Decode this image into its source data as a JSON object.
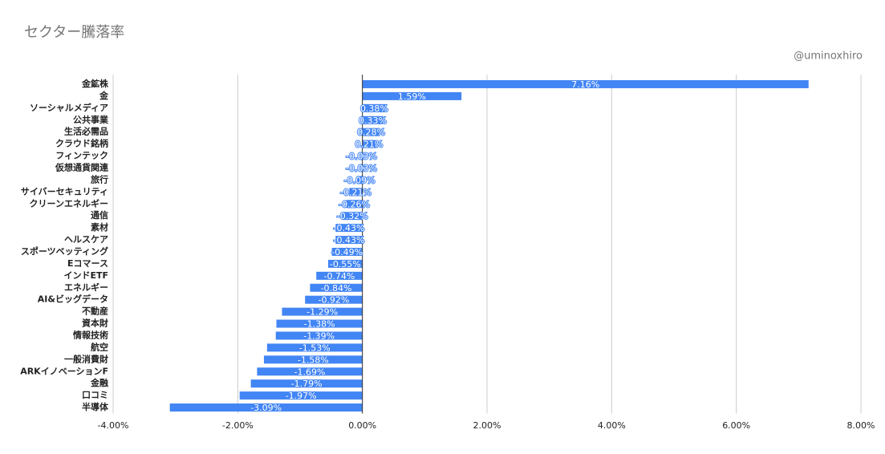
{
  "chart_data": {
    "type": "bar",
    "orientation": "horizontal",
    "title": "セクター騰落率",
    "watermark": "@uminoxhiro",
    "categories": [
      "金鉱株",
      "金",
      "ソーシャルメディア",
      "公共事業",
      "生活必需品",
      "クラウド銘柄",
      "フィンテック",
      "仮想通貨関連",
      "旅行",
      "サイバーセキュリティ",
      "クリーンエネルギー",
      "通信",
      "素材",
      "ヘルスケア",
      "スポーツベッティング",
      "Eコマース",
      "インドETF",
      "エネルギー",
      "AI&ビッグデータ",
      "不動産",
      "資本財",
      "情報技術",
      "航空",
      "一般消費財",
      "ARKイノベーションF",
      "金融",
      "口コミ",
      "半導体"
    ],
    "values": [
      7.16,
      1.59,
      0.38,
      0.33,
      0.28,
      0.21,
      -0.03,
      -0.03,
      -0.09,
      -0.21,
      -0.26,
      -0.32,
      -0.43,
      -0.43,
      -0.49,
      -0.55,
      -0.74,
      -0.84,
      -0.92,
      -1.29,
      -1.38,
      -1.39,
      -1.53,
      -1.58,
      -1.69,
      -1.79,
      -1.97,
      -3.09
    ],
    "value_labels": [
      "7.16%",
      "1.59%",
      "0.38%",
      "0.33%",
      "0.28%",
      "0.21%",
      "-0.03%",
      "-0.03%",
      "-0.09%",
      "-0.21%",
      "-0.26%",
      "-0.32%",
      "-0.43%",
      "-0.43%",
      "-0.49%",
      "-0.55%",
      "-0.74%",
      "-0.84%",
      "-0.92%",
      "-1.29%",
      "-1.38%",
      "-1.39%",
      "-1.53%",
      "-1.58%",
      "-1.69%",
      "-1.79%",
      "-1.97%",
      "-3.09%"
    ],
    "color": "#4285f4",
    "xlim": [
      -4,
      8
    ],
    "xticks": [
      {
        "value": -4,
        "label": "-4.00%"
      },
      {
        "value": -2,
        "label": "-2.00%"
      },
      {
        "value": 0,
        "label": "0.00%"
      },
      {
        "value": 2,
        "label": "2.00%"
      },
      {
        "value": 4,
        "label": "4.00%"
      },
      {
        "value": 6,
        "label": "6.00%"
      },
      {
        "value": 8,
        "label": "8.00%"
      }
    ],
    "grid": true
  }
}
